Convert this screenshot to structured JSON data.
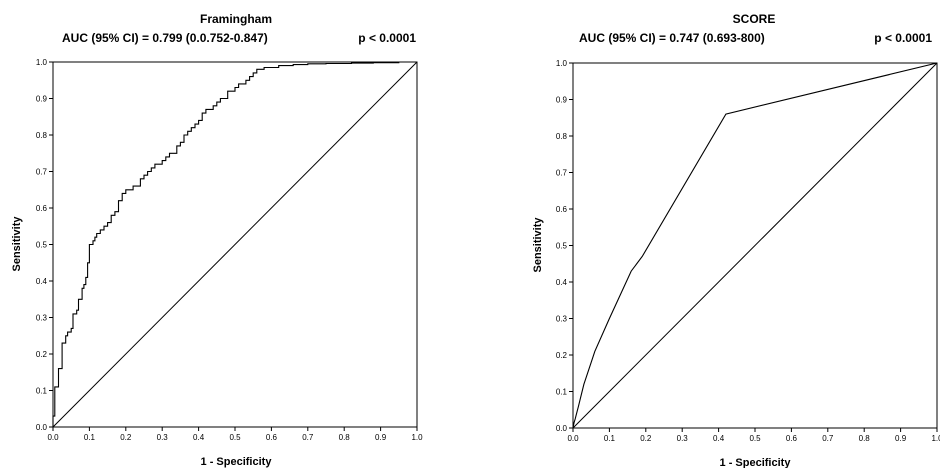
{
  "chart_data": [
    {
      "type": "line",
      "title": "Framingham",
      "subtitle": "AUC (95% CI) = 0.799 (0.0.752-0.847)",
      "p_value": "p < 0.0001",
      "xlabel": "1 - Specificity",
      "ylabel": "Sensitivity",
      "xlim": [
        0,
        1
      ],
      "ylim": [
        0,
        1
      ],
      "xticks": [
        "0.0",
        "0.1",
        "0.2",
        "0.3",
        "0.4",
        "0.5",
        "0.6",
        "0.7",
        "0.8",
        "0.9",
        "1.0"
      ],
      "yticks": [
        "0.0",
        "0.1",
        "0.2",
        "0.3",
        "0.4",
        "0.5",
        "0.6",
        "0.7",
        "0.8",
        "0.9",
        "1.0"
      ],
      "grid": false,
      "series": [
        {
          "x": [
            0.0,
            0.0,
            0.005,
            0.005,
            0.015,
            0.015,
            0.025,
            0.025,
            0.035,
            0.035,
            0.04,
            0.04,
            0.05,
            0.05,
            0.055,
            0.055,
            0.065,
            0.065,
            0.07,
            0.07,
            0.08,
            0.08,
            0.085,
            0.085,
            0.09,
            0.09,
            0.095,
            0.095,
            0.1,
            0.1,
            0.11,
            0.11,
            0.115,
            0.115,
            0.12,
            0.12,
            0.13,
            0.13,
            0.14,
            0.14,
            0.15,
            0.15,
            0.16,
            0.16,
            0.17,
            0.17,
            0.18,
            0.18,
            0.19,
            0.19,
            0.2,
            0.2,
            0.22,
            0.22,
            0.24,
            0.24,
            0.25,
            0.25,
            0.26,
            0.26,
            0.27,
            0.27,
            0.28,
            0.28,
            0.3,
            0.3,
            0.31,
            0.31,
            0.32,
            0.32,
            0.34,
            0.34,
            0.35,
            0.35,
            0.36,
            0.36,
            0.37,
            0.37,
            0.38,
            0.38,
            0.39,
            0.39,
            0.4,
            0.4,
            0.41,
            0.41,
            0.42,
            0.42,
            0.44,
            0.44,
            0.45,
            0.45,
            0.46,
            0.46,
            0.48,
            0.48,
            0.5,
            0.5,
            0.51,
            0.51,
            0.53,
            0.53,
            0.54,
            0.54,
            0.55,
            0.55,
            0.56,
            0.56,
            0.58,
            0.58,
            0.62,
            0.62,
            0.66,
            0.66,
            0.7,
            0.7,
            0.75,
            0.75,
            0.82,
            0.82,
            0.88,
            0.88,
            0.95,
            0.95,
            1.0
          ],
          "y": [
            0.0,
            0.03,
            0.03,
            0.11,
            0.11,
            0.16,
            0.16,
            0.23,
            0.23,
            0.25,
            0.25,
            0.26,
            0.26,
            0.27,
            0.27,
            0.31,
            0.31,
            0.32,
            0.32,
            0.35,
            0.35,
            0.38,
            0.38,
            0.39,
            0.39,
            0.41,
            0.41,
            0.45,
            0.45,
            0.5,
            0.5,
            0.51,
            0.51,
            0.52,
            0.52,
            0.53,
            0.53,
            0.54,
            0.54,
            0.55,
            0.55,
            0.56,
            0.56,
            0.58,
            0.58,
            0.59,
            0.59,
            0.62,
            0.62,
            0.64,
            0.64,
            0.65,
            0.65,
            0.66,
            0.66,
            0.68,
            0.68,
            0.69,
            0.69,
            0.7,
            0.7,
            0.71,
            0.71,
            0.72,
            0.72,
            0.73,
            0.73,
            0.74,
            0.74,
            0.75,
            0.75,
            0.77,
            0.77,
            0.78,
            0.78,
            0.8,
            0.8,
            0.81,
            0.81,
            0.82,
            0.82,
            0.83,
            0.83,
            0.84,
            0.84,
            0.86,
            0.86,
            0.87,
            0.87,
            0.88,
            0.88,
            0.89,
            0.89,
            0.9,
            0.9,
            0.92,
            0.92,
            0.93,
            0.93,
            0.94,
            0.94,
            0.95,
            0.95,
            0.96,
            0.96,
            0.97,
            0.97,
            0.98,
            0.98,
            0.985,
            0.985,
            0.99,
            0.99,
            0.993,
            0.993,
            0.995,
            0.995,
            0.996,
            0.996,
            0.997,
            0.997,
            0.998,
            0.998,
            1.0,
            1.0
          ]
        },
        {
          "x": [
            0.0,
            1.0
          ],
          "y": [
            0.0,
            1.0
          ]
        }
      ]
    },
    {
      "type": "line",
      "title": "SCORE",
      "subtitle": "AUC (95% CI) = 0.747 (0.693-800)",
      "p_value": "p < 0.0001",
      "xlabel": "1 - Specificity",
      "ylabel": "Sensitivity",
      "xlim": [
        0,
        1
      ],
      "ylim": [
        0,
        1
      ],
      "xticks": [
        "0.0",
        "0.1",
        "0.2",
        "0.3",
        "0.4",
        "0.5",
        "0.6",
        "0.7",
        "0.8",
        "0.9",
        "1.0"
      ],
      "yticks": [
        "0.0",
        "0.1",
        "0.2",
        "0.3",
        "0.4",
        "0.5",
        "0.6",
        "0.7",
        "0.8",
        "0.9",
        "1.0"
      ],
      "grid": false,
      "series": [
        {
          "x": [
            0.0,
            0.003,
            0.006,
            0.01,
            0.015,
            0.02,
            0.03,
            0.05,
            0.06,
            0.1,
            0.16,
            0.19,
            0.42,
            1.0
          ],
          "y": [
            0.0,
            0.015,
            0.025,
            0.04,
            0.06,
            0.08,
            0.12,
            0.18,
            0.21,
            0.3,
            0.43,
            0.47,
            0.86,
            1.0
          ]
        },
        {
          "x": [
            0.0,
            1.0
          ],
          "y": [
            0.0,
            1.0
          ]
        }
      ]
    }
  ]
}
